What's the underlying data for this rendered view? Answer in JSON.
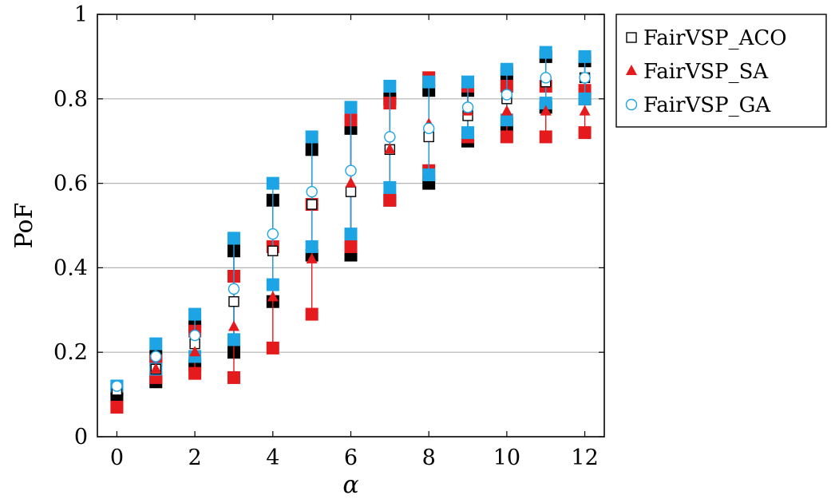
{
  "chart_data": {
    "type": "scatter",
    "xlabel": "α",
    "ylabel": "PoF",
    "xlim": [
      -0.5,
      12.5
    ],
    "ylim": [
      0,
      1
    ],
    "xticks": [
      0,
      2,
      4,
      6,
      8,
      10,
      12
    ],
    "yticks": [
      0,
      0.2,
      0.4,
      0.6,
      0.8,
      1
    ],
    "ytick_labels": [
      "0",
      "0.2",
      "0.4",
      "0.6",
      "0.8",
      "1"
    ],
    "grid": "horizontal",
    "legend_position": "outside-right-top",
    "series": [
      {
        "name": "FairVSP_ACO",
        "marker": "open-square",
        "color": "#000000",
        "x": [
          0,
          1,
          2,
          3,
          4,
          5,
          6,
          7,
          8,
          9,
          10,
          11,
          12
        ],
        "y": [
          0.11,
          0.16,
          0.22,
          0.32,
          0.44,
          0.55,
          0.58,
          0.68,
          0.71,
          0.76,
          0.8,
          0.84,
          0.85
        ],
        "err_low": [
          0.1,
          0.13,
          0.17,
          0.2,
          0.32,
          0.43,
          0.43,
          0.56,
          0.6,
          0.7,
          0.74,
          0.78,
          0.8
        ],
        "err_high": [
          0.11,
          0.19,
          0.26,
          0.44,
          0.56,
          0.68,
          0.73,
          0.8,
          0.82,
          0.82,
          0.86,
          0.9,
          0.89
        ]
      },
      {
        "name": "FairVSP_SA",
        "marker": "filled-triangle",
        "color": "#e41a1c",
        "x": [
          0,
          1,
          2,
          3,
          4,
          5,
          6,
          7,
          8,
          9,
          10,
          11,
          12
        ],
        "y": [
          0.07,
          0.16,
          0.2,
          0.26,
          0.33,
          0.42,
          0.6,
          0.68,
          0.74,
          0.77,
          0.77,
          0.77,
          0.77
        ],
        "err_low": [
          0.07,
          0.14,
          0.15,
          0.14,
          0.21,
          0.29,
          0.45,
          0.56,
          0.63,
          0.71,
          0.71,
          0.71,
          0.72
        ],
        "err_high": [
          0.07,
          0.18,
          0.25,
          0.38,
          0.45,
          0.55,
          0.75,
          0.79,
          0.85,
          0.83,
          0.83,
          0.83,
          0.82
        ]
      },
      {
        "name": "FairVSP_GA",
        "marker": "open-circle",
        "color": "#1ca4e4",
        "x": [
          0,
          1,
          2,
          3,
          4,
          5,
          6,
          7,
          8,
          9,
          10,
          11,
          12
        ],
        "y": [
          0.12,
          0.19,
          0.24,
          0.35,
          0.48,
          0.58,
          0.63,
          0.71,
          0.73,
          0.78,
          0.81,
          0.85,
          0.85
        ],
        "err_low": [
          0.12,
          0.16,
          0.19,
          0.23,
          0.36,
          0.45,
          0.48,
          0.59,
          0.62,
          0.72,
          0.75,
          0.79,
          0.8
        ],
        "err_high": [
          0.12,
          0.22,
          0.29,
          0.47,
          0.6,
          0.71,
          0.78,
          0.83,
          0.84,
          0.84,
          0.87,
          0.91,
          0.9
        ]
      }
    ]
  }
}
